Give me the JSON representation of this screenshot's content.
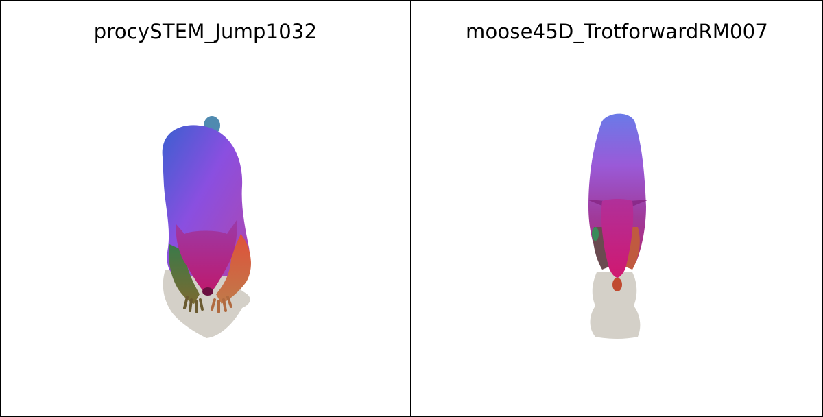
{
  "panels": [
    {
      "title": "procySTEM_Jump1032",
      "subject": "procyon-mesh-render"
    },
    {
      "title": "moose45D_TrotforwardRM007",
      "subject": "moose-mesh-render"
    }
  ],
  "colors": {
    "shadow": "#d4d0c8",
    "frame": "#000000",
    "background": "#ffffff"
  }
}
